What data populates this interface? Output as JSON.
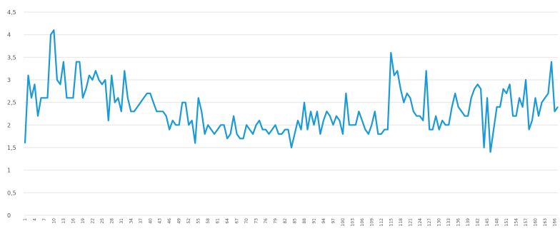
{
  "chart_data": {
    "type": "line",
    "title": "",
    "xlabel": "",
    "ylabel": "",
    "ylim": [
      0,
      4.5
    ],
    "yticks": [
      "0",
      "0,5",
      "1",
      "1,5",
      "2",
      "2,5",
      "3",
      "3,5",
      "4",
      "4,5"
    ],
    "grid": true,
    "legend": "none",
    "color": "#1a9bd7",
    "x_tick_labels": [
      "1",
      "4",
      "7",
      "10",
      "13",
      "16",
      "19",
      "22",
      "25",
      "28",
      "31",
      "34",
      "37",
      "40",
      "43",
      "46",
      "49",
      "52",
      "55",
      "58",
      "61",
      "64",
      "67",
      "70",
      "73",
      "76",
      "79",
      "82",
      "85",
      "88",
      "91",
      "94",
      "97",
      "100",
      "103",
      "106",
      "109",
      "112",
      "115",
      "118",
      "121",
      "124",
      "127",
      "130",
      "133",
      "136",
      "139",
      "142",
      "145",
      "148",
      "151",
      "154",
      "157",
      "160",
      "163",
      "166"
    ],
    "series": [
      {
        "name": "",
        "values": [
          1.6,
          3.1,
          2.6,
          2.9,
          2.2,
          2.6,
          2.6,
          2.6,
          4.0,
          4.1,
          3.0,
          2.9,
          3.4,
          2.6,
          2.6,
          2.6,
          3.4,
          3.4,
          2.6,
          2.8,
          3.1,
          3.0,
          3.2,
          3.0,
          2.9,
          3.0,
          2.1,
          3.1,
          2.5,
          2.6,
          2.3,
          3.2,
          2.6,
          2.3,
          2.3,
          2.4,
          2.5,
          2.6,
          2.7,
          2.7,
          2.5,
          2.3,
          2.3,
          2.3,
          2.2,
          1.9,
          2.1,
          2.0,
          2.0,
          2.5,
          2.5,
          2.0,
          2.1,
          1.6,
          2.6,
          2.3,
          1.8,
          2.0,
          1.9,
          1.8,
          1.9,
          2.0,
          2.0,
          1.7,
          1.8,
          2.2,
          1.8,
          1.7,
          1.7,
          2.0,
          1.9,
          1.8,
          2.0,
          2.1,
          1.9,
          1.9,
          1.8,
          1.9,
          2.0,
          1.8,
          1.8,
          1.9,
          1.9,
          1.5,
          1.8,
          2.1,
          1.9,
          2.5,
          1.9,
          2.3,
          2.0,
          2.3,
          1.8,
          2.1,
          2.3,
          2.2,
          2.0,
          2.2,
          2.1,
          1.8,
          2.7,
          2.0,
          2.0,
          2.0,
          2.3,
          2.1,
          1.9,
          1.8,
          2.0,
          2.3,
          1.8,
          1.8,
          1.9,
          1.9,
          3.6,
          3.1,
          3.2,
          2.8,
          2.5,
          2.7,
          2.6,
          2.3,
          2.2,
          2.2,
          2.1,
          3.2,
          1.9,
          1.9,
          2.2,
          1.9,
          2.1,
          2.0,
          2.0,
          2.4,
          2.7,
          2.4,
          2.3,
          2.2,
          2.2,
          2.6,
          2.8,
          2.9,
          2.8,
          1.5,
          2.6,
          1.4,
          1.9,
          2.4,
          2.4,
          2.8,
          2.7,
          2.9,
          2.2,
          2.2,
          2.6,
          2.4,
          3.0,
          1.9,
          2.1,
          2.6,
          2.2,
          2.5,
          2.6,
          2.7,
          3.4,
          2.3,
          2.4
        ]
      }
    ]
  }
}
